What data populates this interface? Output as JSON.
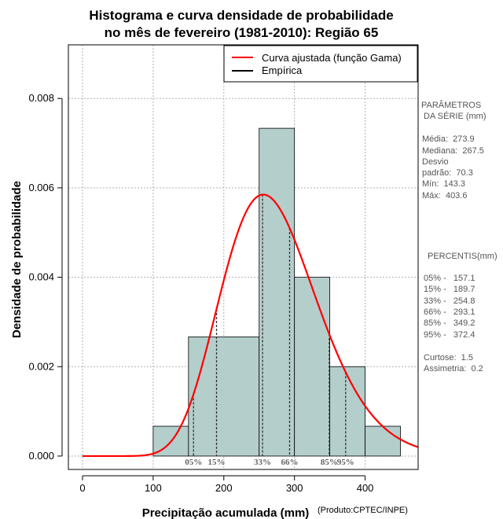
{
  "chart_data": {
    "type": "bar",
    "title_line1": "Histograma e curva densidade de probabilidade",
    "title_line2": "no mês de fevereiro (1981-2010): Região 65",
    "xlabel": "Precipitação acumulada (mm)",
    "ylabel": "Densidade de probabilidade",
    "credit": "(Produto:CPTEC/INPE)",
    "xlim": [
      -20,
      475
    ],
    "ylim": [
      -0.0003,
      0.0092
    ],
    "x_ticks": [
      0,
      100,
      200,
      300,
      400
    ],
    "x_tick_labels": [
      "0",
      "100",
      "200",
      "300",
      "400"
    ],
    "y_ticks": [
      0.0,
      0.002,
      0.004,
      0.006,
      0.008
    ],
    "y_tick_labels": [
      "0.000",
      "0.002",
      "0.004",
      "0.006",
      "0.008"
    ],
    "grid": true,
    "bars": [
      {
        "x0": 100,
        "x1": 150,
        "density": 0.000667
      },
      {
        "x0": 150,
        "x1": 250,
        "density": 0.002667
      },
      {
        "x0": 250,
        "x1": 300,
        "density": 0.007333
      },
      {
        "x0": 300,
        "x1": 350,
        "density": 0.004
      },
      {
        "x0": 350,
        "x1": 400,
        "density": 0.002
      },
      {
        "x0": 400,
        "x1": 450,
        "density": 0.000667
      }
    ],
    "bar_color": "#b4cecc",
    "curve_color": "#ff0000",
    "gamma_fit": {
      "mean": 273.9,
      "sd": 70.3,
      "mode_density": 0.00585
    },
    "percentile_lines": [
      {
        "label": "05%",
        "value": 157.1
      },
      {
        "label": "15%",
        "value": 189.7
      },
      {
        "label": "33%",
        "value": 254.8
      },
      {
        "label": "66%",
        "value": 293.1
      },
      {
        "label": "85%",
        "value": 349.2
      },
      {
        "label": "95%",
        "value": 372.4
      }
    ],
    "legend": [
      {
        "label": "Curva ajustada (função Gama)",
        "color": "#ff0000"
      },
      {
        "label": "Empírica",
        "color": "#000000"
      }
    ],
    "legend_position": "top-right"
  },
  "side_panel": {
    "params_title1": "PARÂMETROS",
    "params_title2": " DA SÉRIE (mm)",
    "media": "Média:  273.9",
    "mediana": "Mediana:  267.5",
    "desvio1": "Desvio",
    "desvio2": "padrão:  70.3",
    "min": "Mín:  143.3",
    "max": "Máx:  403.6",
    "percentis_title": "PERCENTIS(mm)",
    "p05": "05% -   157.1",
    "p15": "15% -   189.7",
    "p33": "33% -   254.8",
    "p66": "66% -   293.1",
    "p85": "85% -   349.2",
    "p95": "95% -   372.4",
    "curtose": "Curtose:  1.5",
    "assimetria": "Assimetria:  0.2"
  }
}
